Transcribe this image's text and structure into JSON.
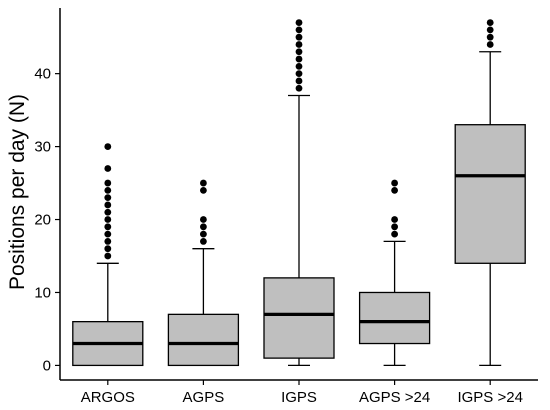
{
  "chart_data": {
    "type": "boxplot",
    "title": "",
    "xlabel": "",
    "ylabel": "Positions per day (N)",
    "ylim": [
      -2,
      49
    ],
    "yticks": [
      0,
      10,
      20,
      30,
      40
    ],
    "grid": false,
    "legend": "none",
    "colors": {
      "box_fill": "#bfbfbf",
      "stroke": "#000000",
      "outlier": "#000000"
    },
    "categories": [
      "ARGOS",
      "AGPS",
      "IGPS",
      "AGPS >24",
      "IGPS >24"
    ],
    "boxes": [
      {
        "name": "ARGOS",
        "min": 0,
        "q1": 0,
        "median": 3,
        "q3": 6,
        "max": 14,
        "outliers": [
          15,
          16,
          17,
          18,
          19,
          20,
          21,
          22,
          23,
          24,
          25,
          27,
          30
        ]
      },
      {
        "name": "AGPS",
        "min": 0,
        "q1": 0,
        "median": 3,
        "q3": 7,
        "max": 16,
        "outliers": [
          17,
          18,
          19,
          20,
          24,
          25
        ]
      },
      {
        "name": "IGPS",
        "min": 0,
        "q1": 1,
        "median": 7,
        "q3": 12,
        "max": 37,
        "outliers": [
          38,
          39,
          40,
          41,
          42,
          43,
          44,
          45,
          46,
          47
        ]
      },
      {
        "name": "AGPS >24",
        "min": 0,
        "q1": 3,
        "median": 6,
        "q3": 10,
        "max": 17,
        "outliers": [
          18,
          19,
          20,
          24,
          25
        ]
      },
      {
        "name": "IGPS >24",
        "min": 0,
        "q1": 14,
        "median": 26,
        "q3": 33,
        "max": 43,
        "outliers": [
          44,
          45,
          46,
          47
        ]
      }
    ]
  }
}
